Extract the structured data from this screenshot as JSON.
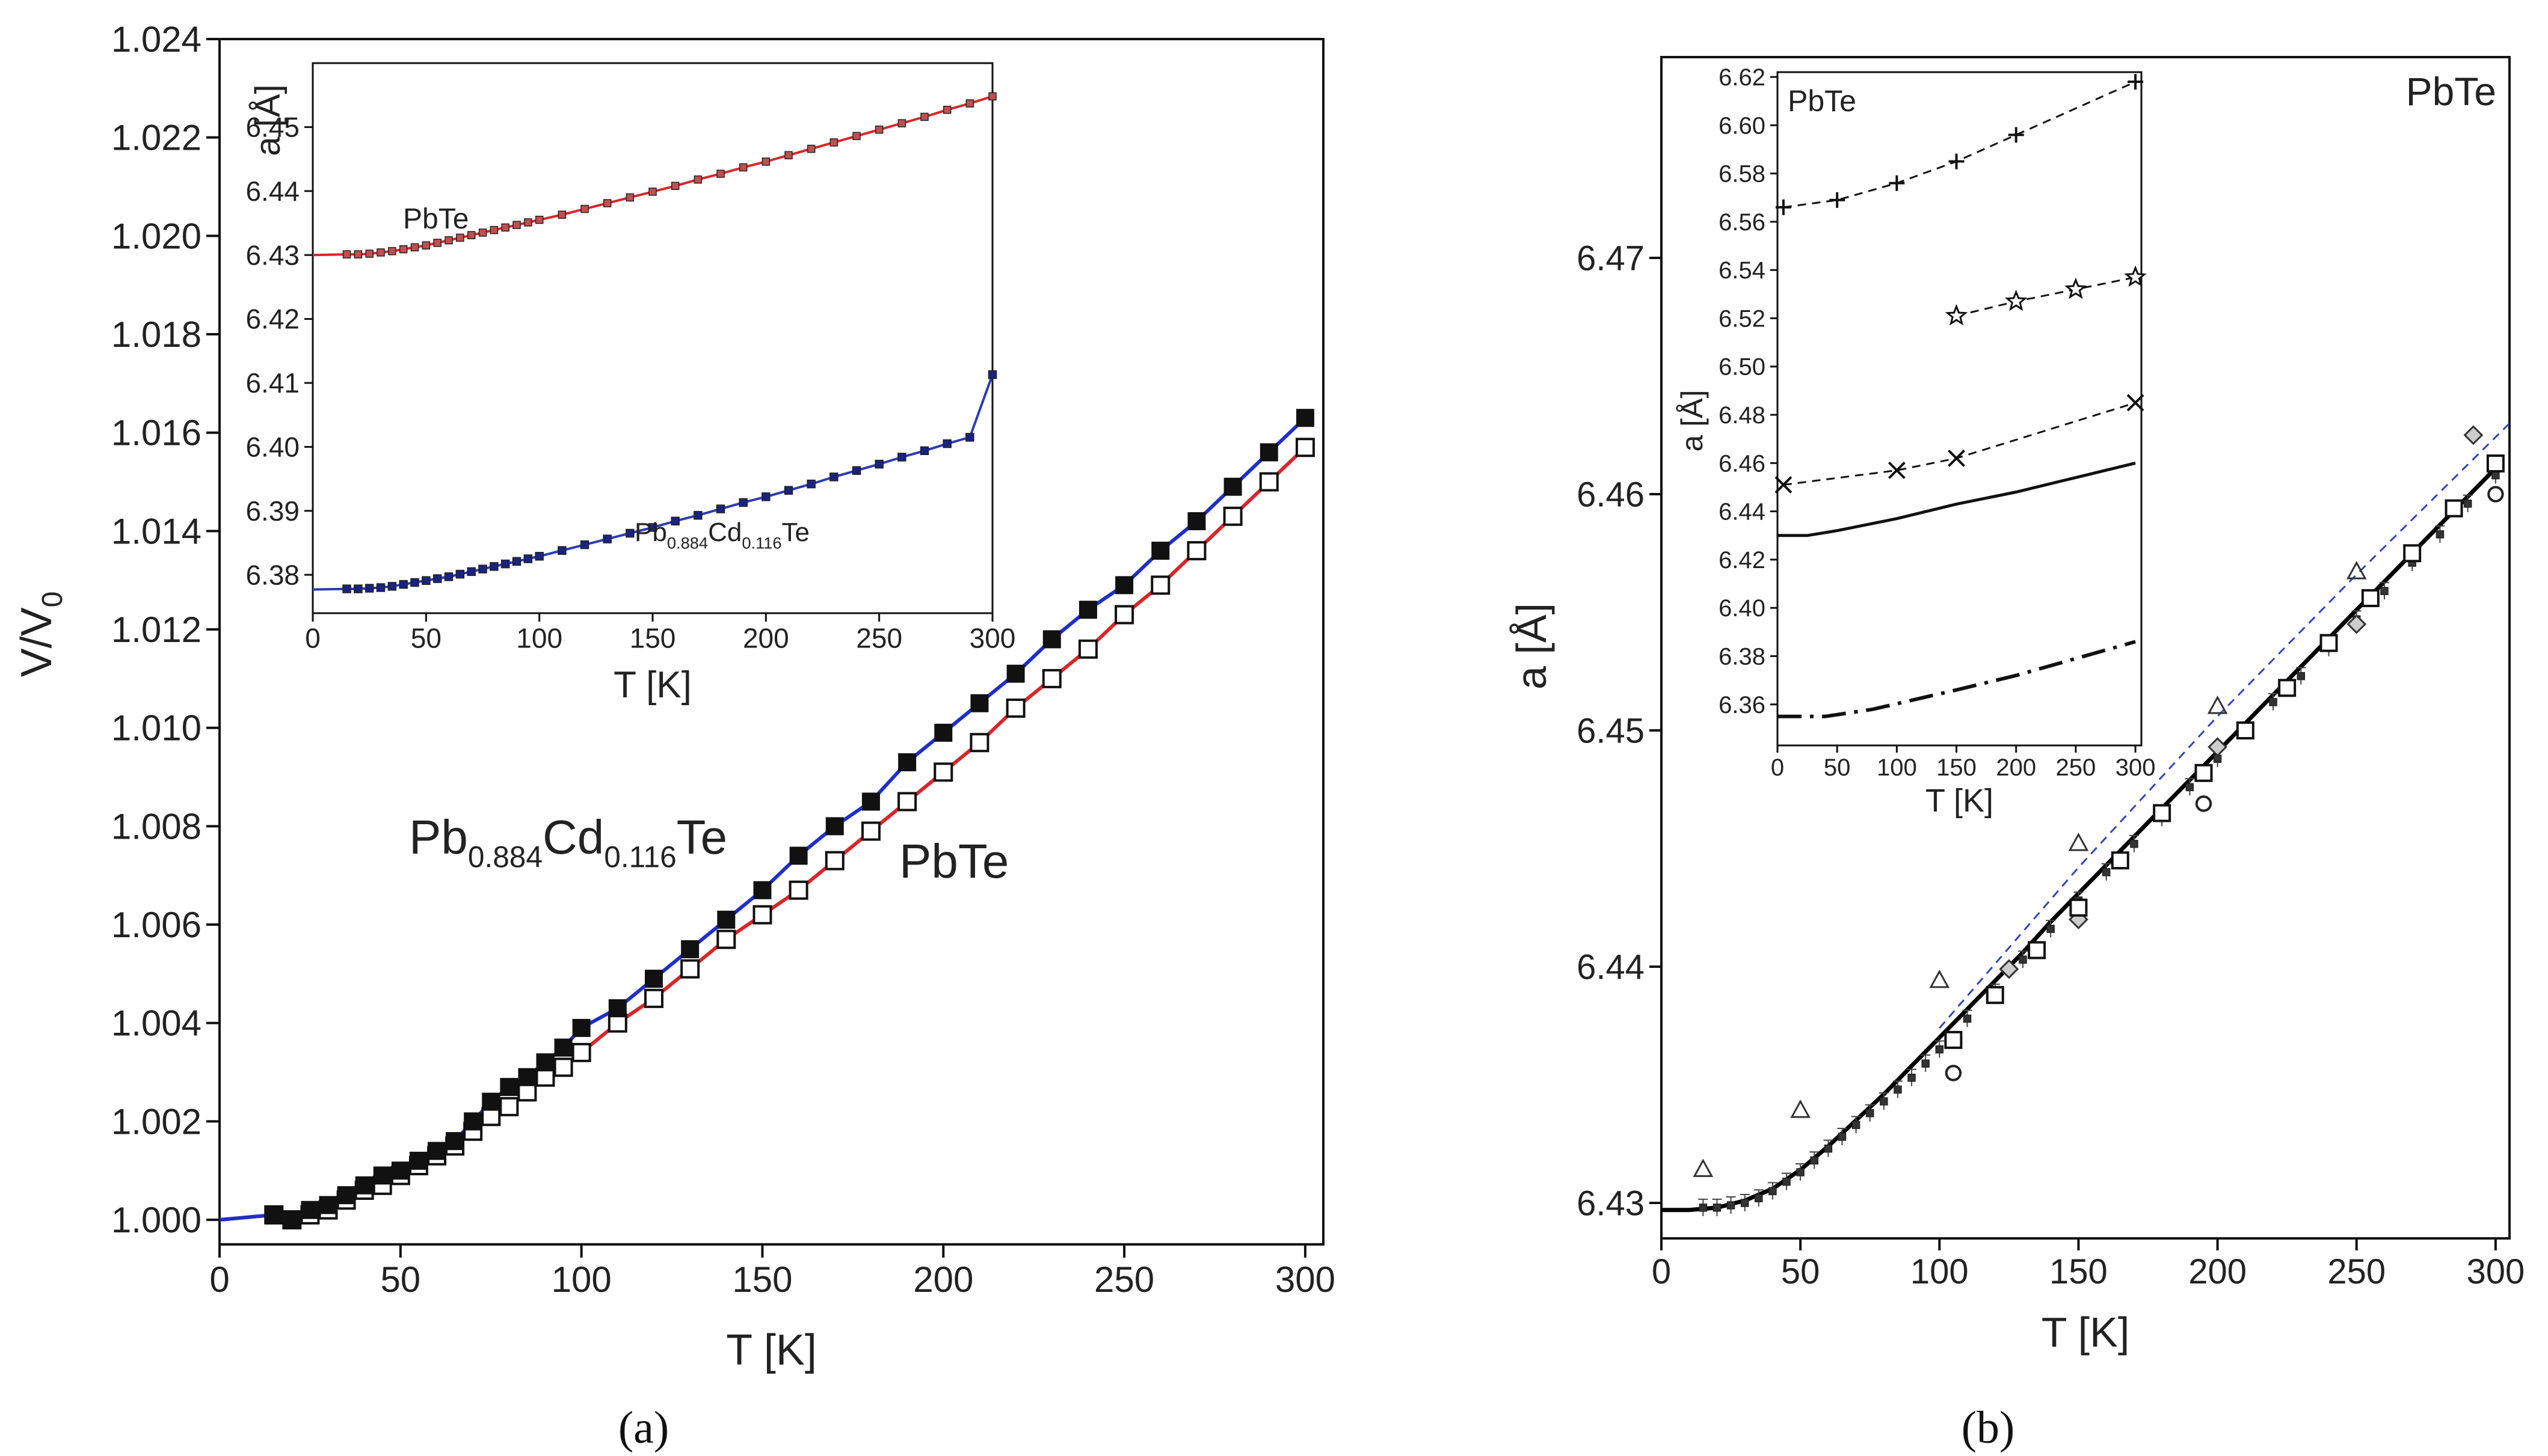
{
  "figure": {
    "panel_a_label": "(a)",
    "panel_b_label": "(b)"
  },
  "chart_data": [
    {
      "id": "a-main",
      "type": "line",
      "title": "",
      "xlabel": "T [K]",
      "ylabel": "V/V0",
      "ylabel_main": "V/V",
      "ylabel_sub": "0",
      "xlim": [
        0,
        305
      ],
      "ylim": [
        0.9995,
        1.024
      ],
      "xticks": [
        0,
        50,
        100,
        150,
        200,
        250,
        300
      ],
      "yticks": [
        1.0,
        1.002,
        1.004,
        1.006,
        1.008,
        1.01,
        1.012,
        1.014,
        1.016,
        1.018,
        1.02,
        1.022,
        1.024
      ],
      "ytick_labels": [
        "1.000",
        "1.002",
        "1.004",
        "1.006",
        "1.008",
        "1.010",
        "1.012",
        "1.014",
        "1.016",
        "1.018",
        "1.020",
        "1.022",
        "1.024"
      ],
      "annotations": [
        {
          "id": "cd",
          "parts": [
            "Pb",
            "0.884",
            "Cd",
            "0.116",
            "Te"
          ]
        },
        {
          "id": "pbte",
          "text": "PbTe"
        }
      ],
      "series": [
        {
          "name": "Pb0.884Cd0.116Te",
          "marker": "filled-square",
          "line_color": "#1f2fc8",
          "x": [
            15,
            20,
            25,
            30,
            35,
            40,
            45,
            50,
            55,
            60,
            65,
            70,
            75,
            80,
            85,
            90,
            95,
            100,
            110,
            120,
            130,
            140,
            150,
            160,
            170,
            180,
            190,
            200,
            210,
            220,
            230,
            240,
            250,
            260,
            270,
            280,
            290,
            300
          ],
          "y": [
            1.0001,
            1.0,
            1.0002,
            1.0003,
            1.0005,
            1.0007,
            1.0009,
            1.001,
            1.0012,
            1.0014,
            1.0016,
            1.002,
            1.0024,
            1.0027,
            1.0029,
            1.0032,
            1.0035,
            1.0039,
            1.0043,
            1.0049,
            1.0055,
            1.0061,
            1.0067,
            1.0074,
            1.008,
            1.0085,
            1.0093,
            1.0099,
            1.0105,
            1.0111,
            1.0118,
            1.0124,
            1.0129,
            1.0136,
            1.0142,
            1.0149,
            1.0156,
            1.0163
          ]
        },
        {
          "name": "PbTe",
          "marker": "open-square",
          "line_color": "#d8262a",
          "x": [
            15,
            20,
            25,
            30,
            35,
            40,
            45,
            50,
            55,
            60,
            65,
            70,
            75,
            80,
            85,
            90,
            95,
            100,
            110,
            120,
            130,
            140,
            150,
            160,
            170,
            180,
            190,
            200,
            210,
            220,
            230,
            240,
            250,
            260,
            270,
            280,
            290,
            300
          ],
          "y": [
            1.0001,
            1.0,
            1.0001,
            1.0002,
            1.0004,
            1.0006,
            1.0007,
            1.0009,
            1.0011,
            1.0013,
            1.0015,
            1.0018,
            1.0021,
            1.0023,
            1.0026,
            1.0029,
            1.0031,
            1.0034,
            1.004,
            1.0045,
            1.0051,
            1.0057,
            1.0062,
            1.0067,
            1.0073,
            1.0079,
            1.0085,
            1.0091,
            1.0097,
            1.0104,
            1.011,
            1.0116,
            1.0123,
            1.0129,
            1.0136,
            1.0143,
            1.015,
            1.0157
          ]
        }
      ]
    },
    {
      "id": "a-inset",
      "type": "line",
      "xlabel": "T [K]",
      "ylabel": "a [Å]",
      "xlim": [
        0,
        300
      ],
      "ylim": [
        6.374,
        6.46
      ],
      "xticks": [
        0,
        50,
        100,
        150,
        200,
        250,
        300
      ],
      "yticks": [
        6.38,
        6.39,
        6.4,
        6.41,
        6.42,
        6.43,
        6.44,
        6.45
      ],
      "ytick_labels": [
        "6.38",
        "6.39",
        "6.40",
        "6.41",
        "6.42",
        "6.43",
        "6.44",
        "6.45"
      ],
      "annotations": [
        {
          "id": "pbte",
          "text": "PbTe"
        },
        {
          "id": "cd",
          "parts": [
            "Pb",
            "0.884",
            "Cd",
            "0.116",
            "Te"
          ]
        }
      ],
      "series": [
        {
          "name": "PbTe",
          "marker": "small-square",
          "line_color": "#d8262a",
          "x": [
            15,
            20,
            25,
            30,
            35,
            40,
            45,
            50,
            55,
            60,
            65,
            70,
            75,
            80,
            85,
            90,
            95,
            100,
            110,
            120,
            130,
            140,
            150,
            160,
            170,
            180,
            190,
            200,
            210,
            220,
            230,
            240,
            250,
            260,
            270,
            280,
            290,
            300
          ],
          "y": [
            6.4301,
            6.4301,
            6.4302,
            6.4304,
            6.4306,
            6.4309,
            6.4312,
            6.4315,
            6.4319,
            6.4323,
            6.4327,
            6.4331,
            6.4335,
            6.4339,
            6.4343,
            6.4347,
            6.4351,
            6.4355,
            6.4363,
            6.4372,
            6.4381,
            6.439,
            6.4399,
            6.4408,
            6.4418,
            6.4427,
            6.4437,
            6.4446,
            6.4456,
            6.4466,
            6.4476,
            6.4486,
            6.4496,
            6.4506,
            6.4516,
            6.4527,
            6.4537,
            6.4548
          ]
        },
        {
          "name": "Pb0.884Cd0.116Te",
          "marker": "small-square",
          "line_color": "#2b3cb5",
          "x": [
            15,
            20,
            25,
            30,
            35,
            40,
            45,
            50,
            55,
            60,
            65,
            70,
            75,
            80,
            85,
            90,
            95,
            100,
            110,
            120,
            130,
            140,
            150,
            160,
            170,
            180,
            190,
            200,
            210,
            220,
            230,
            240,
            250,
            260,
            270,
            280,
            290,
            300
          ],
          "y": [
            6.3778,
            6.3778,
            6.3779,
            6.378,
            6.3782,
            6.3785,
            6.3788,
            6.3791,
            6.3794,
            6.3797,
            6.3801,
            6.3805,
            6.3809,
            6.3813,
            6.3817,
            6.3821,
            6.3825,
            6.3829,
            6.3838,
            6.3847,
            6.3856,
            6.3865,
            6.3874,
            6.3884,
            6.3893,
            6.3903,
            6.3913,
            6.3922,
            6.3932,
            6.3942,
            6.3953,
            6.3963,
            6.3973,
            6.3984,
            6.3994,
            6.4005,
            6.4015,
            6.4113
          ]
        }
      ]
    },
    {
      "id": "b-main",
      "type": "line",
      "title": "PbTe",
      "xlabel": "T [K]",
      "ylabel": "a [Å]",
      "xlim": [
        0,
        305
      ],
      "ylim": [
        6.4285,
        6.4785
      ],
      "xticks": [
        0,
        50,
        100,
        150,
        200,
        250,
        300
      ],
      "yticks": [
        6.43,
        6.44,
        6.45,
        6.46,
        6.47
      ],
      "ytick_labels": [
        "6.43",
        "6.44",
        "6.45",
        "6.46",
        "6.47"
      ],
      "series": [
        {
          "name": "fit",
          "style": "solid",
          "line_color": "#000000",
          "x": [
            0,
            10,
            20,
            30,
            40,
            50,
            60,
            70,
            80,
            90,
            100,
            110,
            120,
            130,
            140,
            150,
            160,
            170,
            180,
            190,
            200,
            210,
            220,
            230,
            240,
            250,
            260,
            270,
            280,
            290,
            300
          ],
          "y": [
            6.4297,
            6.4297,
            6.4298,
            6.4301,
            6.4306,
            6.4314,
            6.4324,
            6.4335,
            6.4346,
            6.4358,
            6.437,
            6.4382,
            6.4394,
            6.4406,
            6.4419,
            6.4431,
            6.4443,
            6.4455,
            6.4467,
            6.4479,
            6.4491,
            6.4503,
            6.4515,
            6.4527,
            6.4539,
            6.4551,
            6.4563,
            6.4575,
            6.4587,
            6.4599,
            6.4611
          ]
        },
        {
          "name": "dashed",
          "style": "dashed",
          "line_color": "#3344bb",
          "x": [
            100,
            150,
            200,
            250,
            305
          ],
          "y": [
            6.4374,
            6.4442,
            6.4506,
            6.4566,
            6.463
          ]
        },
        {
          "name": "data-small-squares",
          "marker": "small-square",
          "x": [
            15,
            20,
            25,
            30,
            35,
            40,
            45,
            50,
            55,
            60,
            65,
            70,
            75,
            80,
            85,
            90,
            95,
            100,
            110,
            120,
            130,
            140,
            150,
            160,
            170,
            180,
            190,
            200,
            210,
            220,
            230,
            240,
            250,
            260,
            270,
            280,
            290,
            300
          ],
          "y": [
            6.4298,
            6.4298,
            6.4299,
            6.43,
            6.4302,
            6.4305,
            6.4309,
            6.4313,
            6.4318,
            6.4323,
            6.4328,
            6.4333,
            6.4338,
            6.4343,
            6.4348,
            6.4353,
            6.4359,
            6.4365,
            6.4378,
            6.4389,
            6.4403,
            6.4416,
            6.4428,
            6.444,
            6.4452,
            6.4463,
            6.4476,
            6.4488,
            6.45,
            6.4512,
            6.4523,
            6.4535,
            6.4547,
            6.4559,
            6.4571,
            6.4583,
            6.4596,
            6.4608
          ]
        },
        {
          "name": "triangles",
          "marker": "open-triangle",
          "x": [
            15,
            50,
            100,
            150,
            200,
            250
          ],
          "y": [
            6.4314,
            6.4339,
            6.4394,
            6.4452,
            6.451,
            6.4567
          ]
        },
        {
          "name": "circles",
          "marker": "open-circle",
          "x": [
            105,
            195,
            300
          ],
          "y": [
            6.4355,
            6.4469,
            6.46
          ]
        },
        {
          "name": "diamonds",
          "marker": "open-diamond",
          "x": [
            125,
            150,
            200,
            250,
            292
          ],
          "y": [
            6.4399,
            6.442,
            6.4493,
            6.4545,
            6.4625
          ]
        },
        {
          "name": "open-squares",
          "marker": "open-square",
          "x": [
            105,
            120,
            135,
            150,
            165,
            180,
            195,
            210,
            225,
            240,
            255,
            270,
            285,
            300
          ],
          "y": [
            6.4369,
            6.4388,
            6.4407,
            6.4425,
            6.4445,
            6.4465,
            6.4482,
            6.45,
            6.4518,
            6.4537,
            6.4556,
            6.4575,
            6.4594,
            6.4613
          ]
        }
      ]
    },
    {
      "id": "b-inset",
      "type": "line",
      "title": "PbTe",
      "xlabel": "T [K]",
      "ylabel": "a [Å]",
      "xlim": [
        0,
        305
      ],
      "ylim": [
        6.343,
        6.622
      ],
      "xticks": [
        0,
        50,
        100,
        150,
        200,
        250,
        300
      ],
      "yticks": [
        6.36,
        6.38,
        6.4,
        6.42,
        6.44,
        6.46,
        6.48,
        6.5,
        6.52,
        6.54,
        6.56,
        6.58,
        6.6,
        6.62
      ],
      "ytick_labels": [
        "6.36",
        "6.38",
        "6.40",
        "6.42",
        "6.44",
        "6.46",
        "6.48",
        "6.50",
        "6.52",
        "6.54",
        "6.56",
        "6.58",
        "6.60",
        "6.62"
      ],
      "series": [
        {
          "name": "plus",
          "marker": "plus",
          "style": "dashed",
          "x": [
            5,
            50,
            100,
            150,
            200,
            300
          ],
          "y": [
            6.566,
            6.569,
            6.576,
            6.585,
            6.596,
            6.618
          ]
        },
        {
          "name": "star",
          "marker": "star",
          "style": "dashed",
          "x": [
            150,
            200,
            250,
            300
          ],
          "y": [
            6.521,
            6.527,
            6.532,
            6.537
          ]
        },
        {
          "name": "cross",
          "marker": "cross",
          "style": "dashed",
          "x": [
            5,
            100,
            150,
            300
          ],
          "y": [
            6.451,
            6.457,
            6.462,
            6.485
          ]
        },
        {
          "name": "solid",
          "style": "solid",
          "x": [
            0,
            25,
            50,
            100,
            150,
            200,
            250,
            300
          ],
          "y": [
            6.43,
            6.43,
            6.432,
            6.437,
            6.443,
            6.448,
            6.454,
            6.46
          ]
        },
        {
          "name": "dash-dot",
          "style": "dashdot",
          "x": [
            0,
            40,
            80,
            150,
            200,
            250,
            300
          ],
          "y": [
            6.355,
            6.355,
            6.358,
            6.366,
            6.372,
            6.379,
            6.386
          ]
        }
      ]
    }
  ]
}
